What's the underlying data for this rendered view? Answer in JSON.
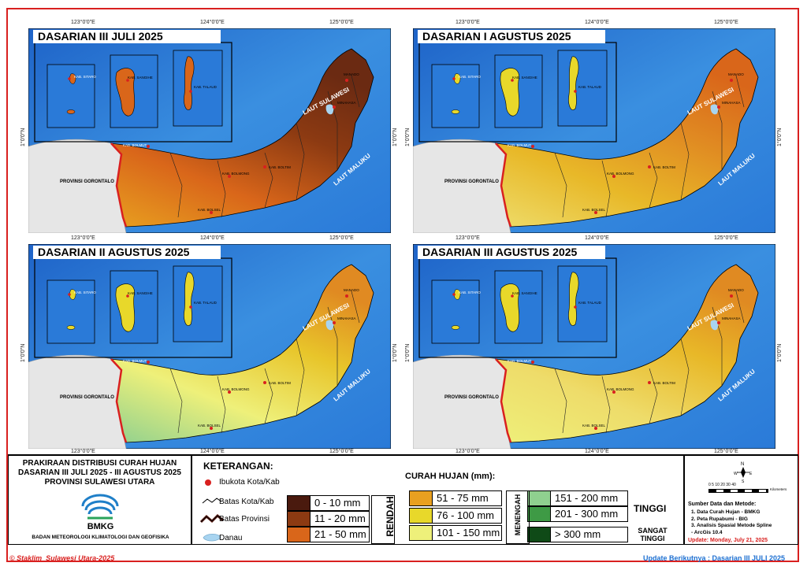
{
  "panels": [
    {
      "title": "DASARIAN III JULI 2025"
    },
    {
      "title": "DASARIAN I AGUSTUS 2025"
    },
    {
      "title": "DASARIAN II AGUSTUS 2025"
    },
    {
      "title": "DASARIAN III AGUSTUS 2025"
    }
  ],
  "coords": {
    "lon1": "123°0'0\"E",
    "lon2": "124°0'0\"E",
    "lon3": "125°0'0\"E",
    "lat": "1°0'0\"N"
  },
  "map_labels": {
    "laut_sulawesi": "LAUT SULAWESI",
    "laut_maluku": "LAUT MALUKU",
    "gorontalo": "PROVINSI GORONTALO",
    "sitaro": "KAB. SITARO",
    "sangihe": "KAB. SANGIHE",
    "talaud": "KAB. TALAUD",
    "bolmut": "KAB. BOLMUT",
    "bolsel": "KAB. BOLSEL",
    "boltim": "KAB. BOLTIM",
    "minahasa": "MINAHASA",
    "manado": "MANADO",
    "bolmong": "KAB. BOLMONG"
  },
  "title_block": {
    "line1": "PRAKIRAAN DISTRIBUSI CURAH HUJAN",
    "line2": "DASARIAN III JULI 2025 - III AGUSTUS 2025",
    "line3": "PROVINSI SULAWESI UTARA",
    "logo_text": "BMKG",
    "agency": "BADAN METEOROLOGI KLIMATOLOGI DAN GEOFISIKA"
  },
  "legend": {
    "heading": "KETERANGAN:",
    "ibukota": "Ibukota Kota/Kab",
    "batas_kota": "Batas Kota/Kab",
    "batas_provinsi": "Batas Provinsi",
    "danau": "Danau",
    "curah_heading": "CURAH HUJAN (mm):",
    "rendah": "RENDAH",
    "menengah": "MENENGAH",
    "tinggi": "TINGGI",
    "sangat_tinggi": "SANGAT TINGGI",
    "classes": [
      {
        "label": "0 - 10 mm",
        "color": "#4a1a0e"
      },
      {
        "label": "11 - 20 mm",
        "color": "#8c3a12"
      },
      {
        "label": "21 - 50 mm",
        "color": "#d9661a"
      },
      {
        "label": "51 - 75 mm",
        "color": "#e8a020"
      },
      {
        "label": "76 - 100 mm",
        "color": "#e8d82a"
      },
      {
        "label": "101 - 150 mm",
        "color": "#eef07a"
      },
      {
        "label": "151 - 200 mm",
        "color": "#8fd08f"
      },
      {
        "label": "201 - 300 mm",
        "color": "#3e9a45"
      },
      {
        "label": "> 300 mm",
        "color": "#0f4a17"
      }
    ]
  },
  "scale": {
    "ticks": "0 5 10   20   30   40",
    "unit": "Kilometers",
    "north": "N",
    "south": "S",
    "east": "E",
    "west": "W"
  },
  "sources": {
    "heading": "Sumber Data dan Metode:",
    "items": [
      "1. Data Curah Hujan - BMKG",
      "2. Peta Rupabumi - BIG",
      "3. Analisis Spasial Metode Spline",
      "- ArcGis 10.4"
    ],
    "update": "Update: Monday, July 21, 2025"
  },
  "footer": {
    "copyright": "© Staklim_Sulawesi Utara-2025",
    "next": "Update Berikutnya : Dasarian III JULI 2025"
  }
}
